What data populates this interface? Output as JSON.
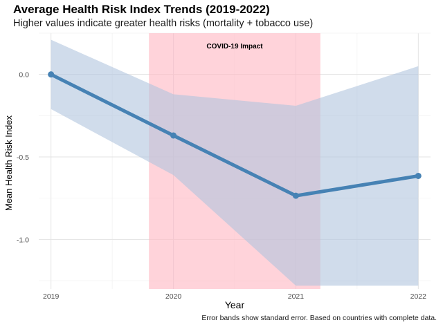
{
  "chart_data": {
    "type": "line",
    "title": "Average Health Risk Index Trends (2019-2022)",
    "subtitle": "Higher values indicate greater health risks (mortality + tobacco use)",
    "caption": "Error bands show standard error. Based on countries with complete data.",
    "xlabel": "Year",
    "ylabel": "Mean Health Risk Index",
    "x": [
      2019,
      2020,
      2021,
      2022
    ],
    "xlim": [
      2018.9,
      2022.1
    ],
    "ylim": [
      -1.3,
      0.25
    ],
    "yticks": [
      0.0,
      -0.5,
      -1.0
    ],
    "ytick_labels": [
      "0.0",
      "-0.5",
      "-1.0"
    ],
    "xtick_labels": [
      "2019",
      "2020",
      "2021",
      "2022"
    ],
    "grid": true,
    "legend": "none",
    "series": [
      {
        "values": [
          0.0,
          -0.37,
          -0.735,
          -0.615
        ],
        "lower": [
          -0.21,
          -0.61,
          -1.28,
          -1.28
        ],
        "upper": [
          0.21,
          -0.12,
          -0.19,
          0.05
        ],
        "color": "#4682b4",
        "band_color": "#b0c4de"
      }
    ],
    "annotations": [
      {
        "type": "shaded_region",
        "x_start": 2019.8,
        "x_end": 2021.2,
        "label": "COVID-19 Impact",
        "color": "#ffb6c1"
      }
    ]
  }
}
